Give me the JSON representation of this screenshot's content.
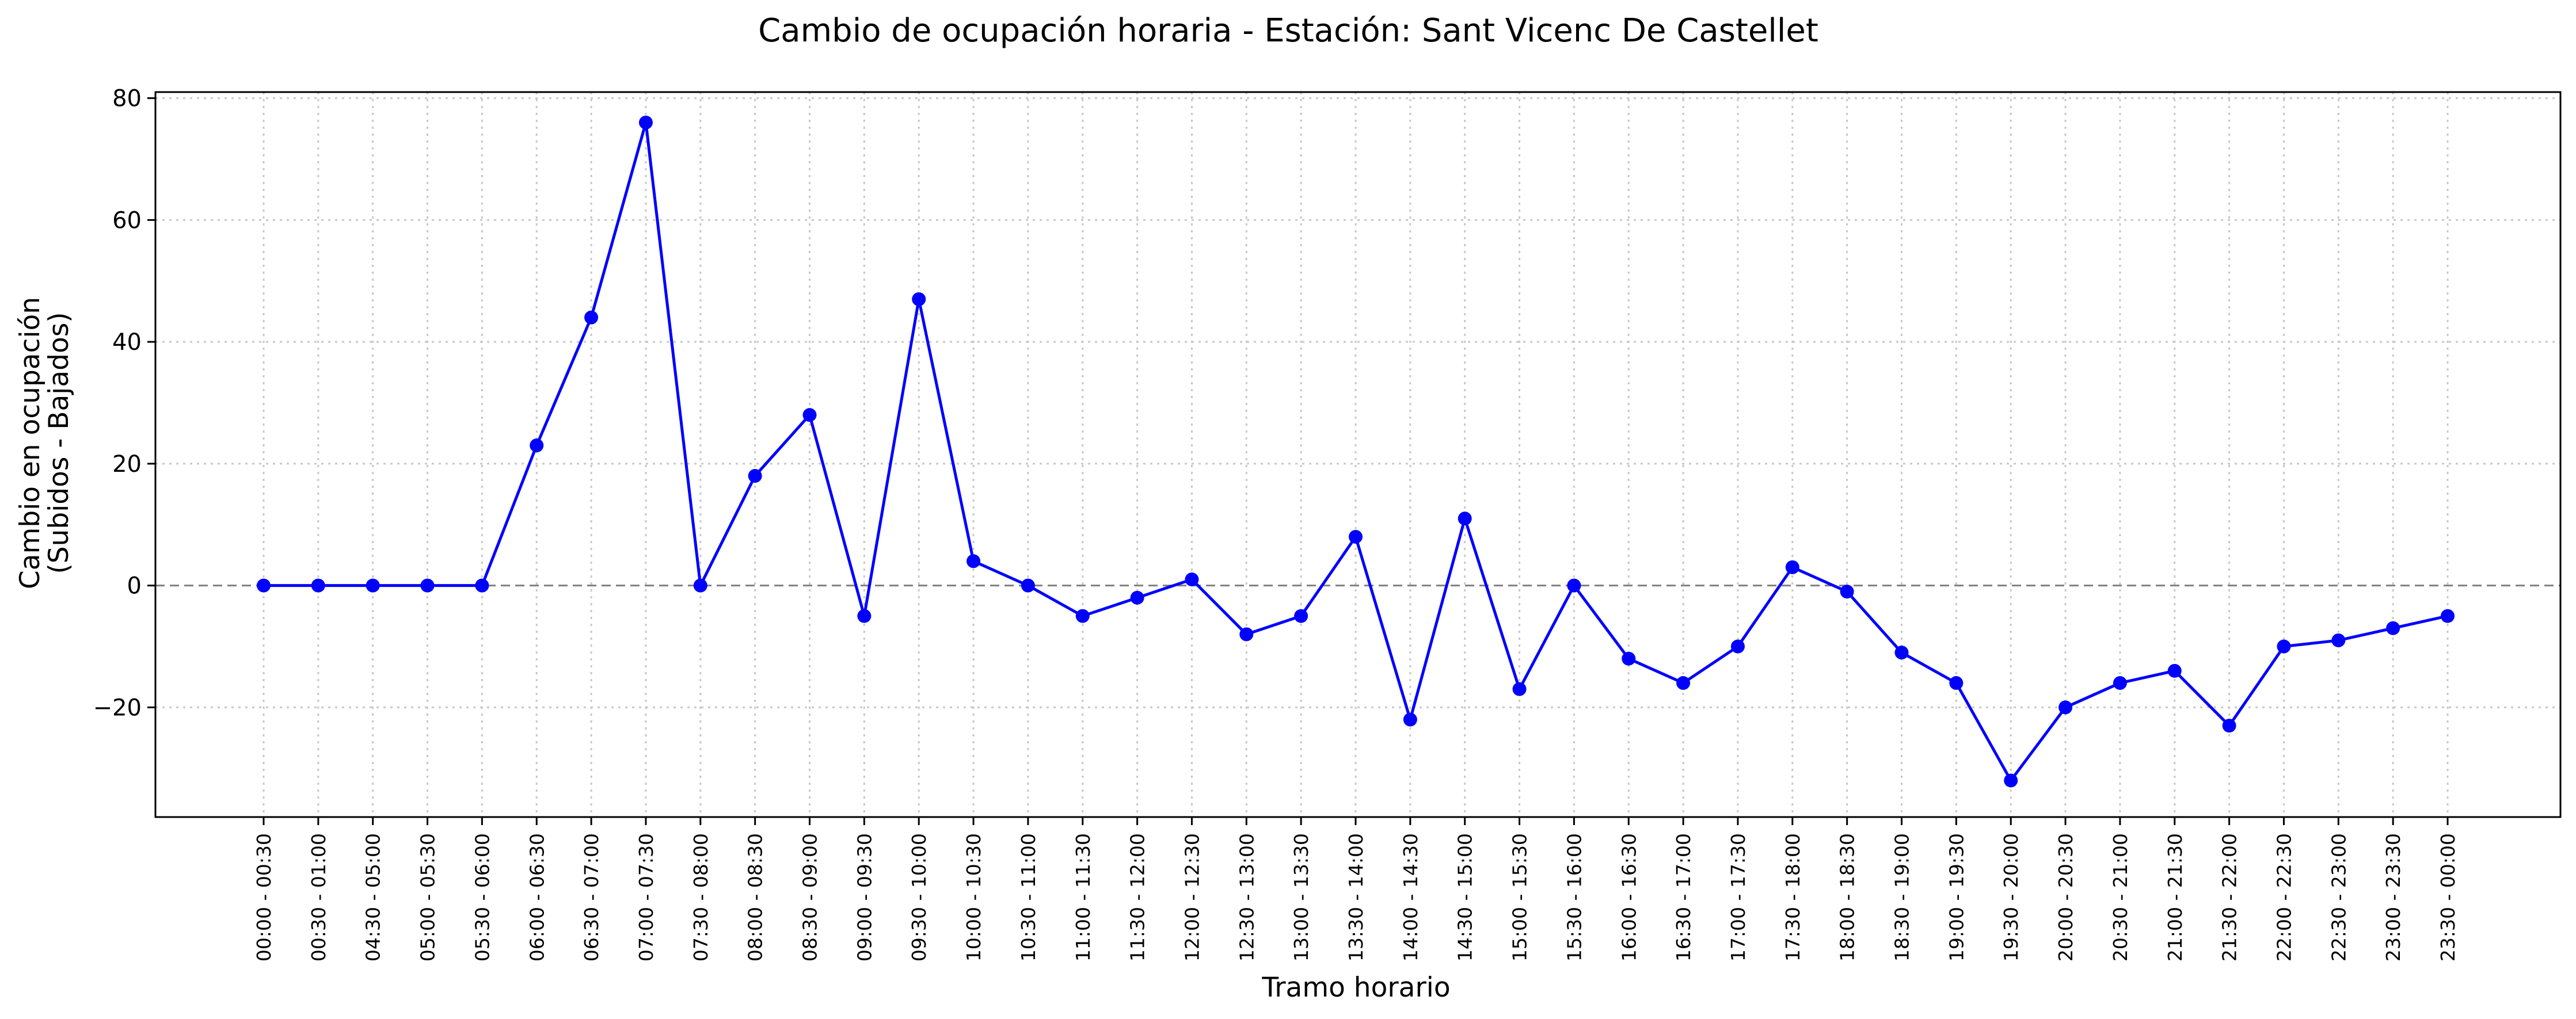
{
  "chart_data": {
    "type": "line",
    "title": "Cambio de ocupación horaria - Estación: Sant Vicenc De Castellet",
    "xlabel": "Tramo horario",
    "ylabel_lines": [
      "Cambio en ocupación",
      "(Subidos - Bajados)"
    ],
    "ylim": [
      -38,
      81
    ],
    "yticks": [
      -20,
      0,
      20,
      40,
      60,
      80
    ],
    "ytick_labels": [
      "−20",
      "0",
      "20",
      "40",
      "60",
      "80"
    ],
    "grid": true,
    "reference_line_y": 0,
    "series_color": "#0000ff",
    "categories": [
      "00:00 - 00:30",
      "00:30 - 01:00",
      "04:30 - 05:00",
      "05:00 - 05:30",
      "05:30 - 06:00",
      "06:00 - 06:30",
      "06:30 - 07:00",
      "07:00 - 07:30",
      "07:30 - 08:00",
      "08:00 - 08:30",
      "08:30 - 09:00",
      "09:00 - 09:30",
      "09:30 - 10:00",
      "10:00 - 10:30",
      "10:30 - 11:00",
      "11:00 - 11:30",
      "11:30 - 12:00",
      "12:00 - 12:30",
      "12:30 - 13:00",
      "13:00 - 13:30",
      "13:30 - 14:00",
      "14:00 - 14:30",
      "14:30 - 15:00",
      "15:00 - 15:30",
      "15:30 - 16:00",
      "16:00 - 16:30",
      "16:30 - 17:00",
      "17:00 - 17:30",
      "17:30 - 18:00",
      "18:00 - 18:30",
      "18:30 - 19:00",
      "19:00 - 19:30",
      "19:30 - 20:00",
      "20:00 - 20:30",
      "20:30 - 21:00",
      "21:00 - 21:30",
      "21:30 - 22:00",
      "22:00 - 22:30",
      "22:30 - 23:00",
      "23:00 - 23:30",
      "23:30 - 00:00"
    ],
    "values": [
      0,
      0,
      0,
      0,
      0,
      23,
      44,
      76,
      0,
      18,
      28,
      -5,
      47,
      4,
      0,
      -5,
      -2,
      1,
      -8,
      -5,
      8,
      -22,
      11,
      -17,
      0,
      -12,
      -16,
      -10,
      3,
      -1,
      -11,
      -16,
      -32,
      -20,
      -16,
      -14,
      -23,
      -10,
      -9,
      -7,
      -5
    ]
  }
}
